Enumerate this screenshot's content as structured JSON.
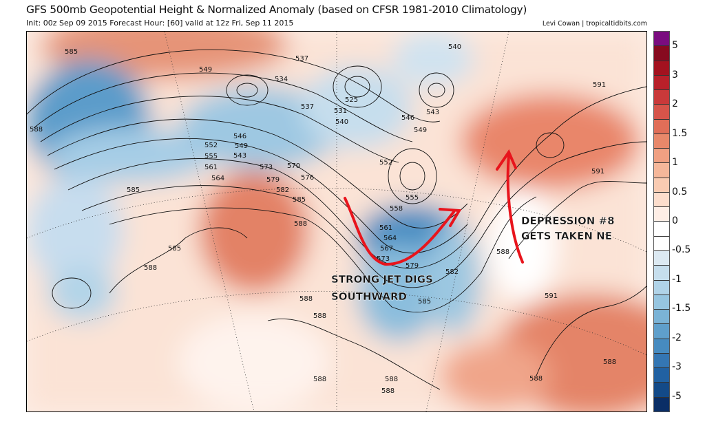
{
  "header": {
    "title": "GFS 500mb Geopotential Height & Normalized Anomaly (based on CFSR 1981-2010 Climatology)",
    "subtitle": "Init: 00z Sep 09 2015   Forecast Hour: [60]   valid at 12z Fri, Sep 11 2015",
    "credit": "Levi Cowan | tropicaltidbits.com"
  },
  "colorbar": {
    "labels": [
      "5",
      "3",
      "2",
      "1.5",
      "1",
      "0.5",
      "0",
      "-0.5",
      "-1",
      "-1.5",
      "-2",
      "-3",
      "-5"
    ],
    "colors": [
      "#7a0c7f",
      "#870a1f",
      "#a3121f",
      "#b8202a",
      "#c9393a",
      "#d6544a",
      "#e06e58",
      "#e8886a",
      "#f0a082",
      "#f5b79a",
      "#f9cbb2",
      "#fcddcc",
      "#feeee6",
      "#ffffff",
      "#ffffff",
      "#dce9f2",
      "#c6deed",
      "#b0d3e8",
      "#96c5e0",
      "#7bb3d6",
      "#5f9fcb",
      "#478bc0",
      "#3476b3",
      "#2161a2",
      "#134a88",
      "#0a2e66"
    ]
  },
  "map": {
    "contour_labels": [
      "585",
      "549",
      "537",
      "540",
      "534",
      "537",
      "525",
      "531",
      "540",
      "546",
      "543",
      "549",
      "546",
      "549",
      "543",
      "552",
      "555",
      "561",
      "564",
      "573",
      "570",
      "579",
      "576",
      "582",
      "585",
      "552",
      "555",
      "558",
      "561",
      "564",
      "567",
      "573",
      "579",
      "582",
      "585",
      "588",
      "585",
      "588",
      "588",
      "588",
      "588",
      "588",
      "591",
      "591",
      "591",
      "588",
      "588",
      "588",
      "588",
      "588",
      "585"
    ],
    "annotations": {
      "depression_line1": "DEPRESSION #8",
      "depression_line2": "GETS TAKEN NE",
      "jet_line1": "STRONG JET DIGS",
      "jet_line2": "SOUTHWARD"
    },
    "annotation_color": "#e8141c"
  }
}
